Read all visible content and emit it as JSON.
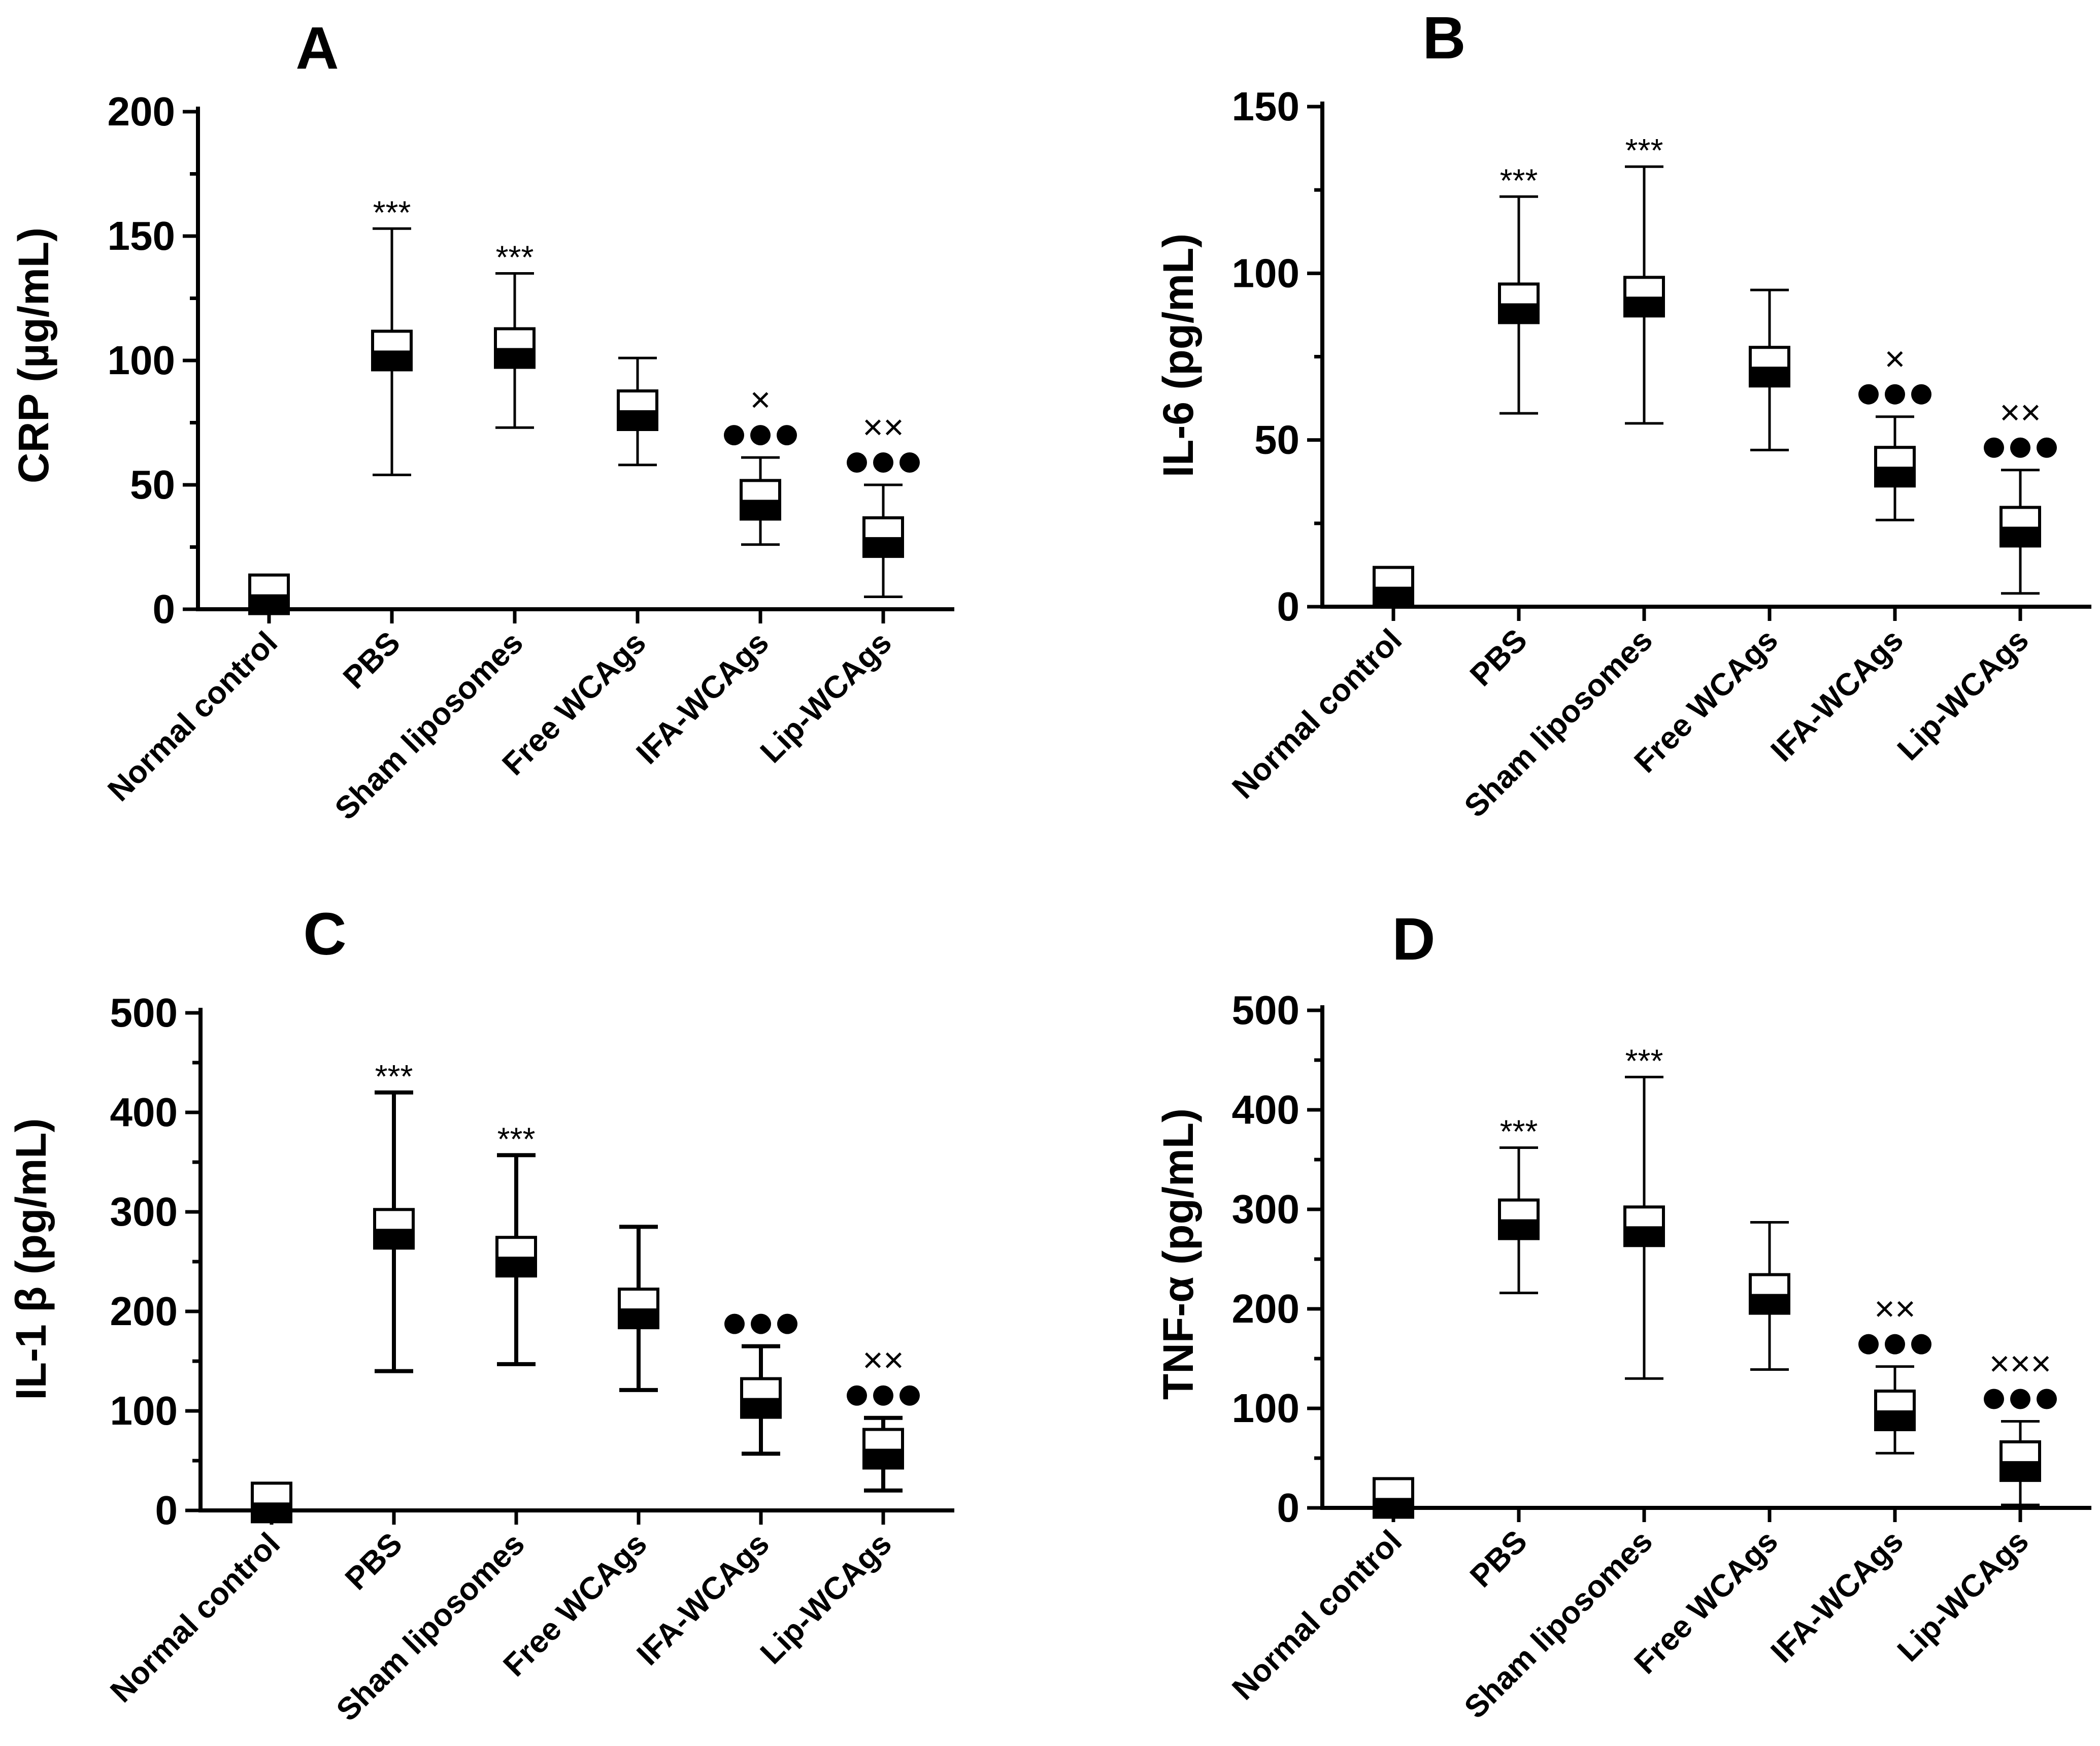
{
  "colors": {
    "ink": "#000000",
    "background": "#ffffff"
  },
  "icons": {
    "median_marker": "half-filled-square",
    "significance_dot": "filled-circle"
  },
  "chart_data": [
    {
      "type": "box",
      "panel": "A",
      "ylabel": "CRP (µg/mL)",
      "ylim": [
        0,
        200
      ],
      "yticks": [
        "0",
        "50",
        "100",
        "150",
        "200"
      ],
      "categories": [
        "Normal control",
        "PBS",
        "Sham liposomes",
        "Free WCAgs",
        "IFA-WCAgs",
        "Lip-WCAgs"
      ],
      "series": [
        {
          "name": "CRP",
          "mean": [
            6,
            104,
            105,
            80,
            44,
            29
          ],
          "min": [
            0,
            54,
            73,
            58,
            26,
            5
          ],
          "max": [
            10,
            153,
            135,
            101,
            61,
            50
          ],
          "stars": [
            "",
            "***",
            "***",
            "",
            "",
            ""
          ],
          "crosses": [
            "",
            "",
            "",
            "",
            "×",
            "××"
          ],
          "dots": [
            0,
            0,
            0,
            0,
            3,
            3
          ]
        }
      ]
    },
    {
      "type": "box",
      "panel": "B",
      "ylabel": "IL-6 (pg/mL)",
      "ylim": [
        0,
        150
      ],
      "yticks": [
        "0",
        "50",
        "100",
        "150"
      ],
      "categories": [
        "Normal control",
        "PBS",
        "Sham liposomes",
        "Free WCAgs",
        "IFA-WCAgs",
        "Lip-WCAgs"
      ],
      "series": [
        {
          "name": "IL-6",
          "mean": [
            6,
            91,
            93,
            72,
            42,
            24
          ],
          "min": [
            0,
            58,
            55,
            47,
            26,
            4
          ],
          "max": [
            9,
            123,
            132,
            95,
            57,
            41
          ],
          "stars": [
            "",
            "***",
            "***",
            "",
            "",
            ""
          ],
          "crosses": [
            "",
            "",
            "",
            "",
            "×",
            "××"
          ],
          "dots": [
            0,
            0,
            0,
            0,
            3,
            3
          ]
        }
      ]
    },
    {
      "type": "box",
      "panel": "C",
      "ylabel": "IL-1 β (pg/mL)",
      "ylim": [
        0,
        500
      ],
      "yticks": [
        "0",
        "100",
        "200",
        "300",
        "400",
        "500"
      ],
      "categories": [
        "Normal control",
        "PBS",
        "Sham liposomes",
        "Free WCAgs",
        "IFA-WCAgs",
        "Lip-WCAgs"
      ],
      "series": [
        {
          "name": "IL-1 β",
          "mean": [
            8,
            283,
            255,
            203,
            113,
            62
          ],
          "min": [
            0,
            140,
            147,
            121,
            57,
            20
          ],
          "max": [
            14,
            420,
            357,
            285,
            165,
            93
          ],
          "stars": [
            "",
            "***",
            "***",
            "",
            "",
            ""
          ],
          "crosses": [
            "",
            "",
            "",
            "",
            "",
            "××"
          ],
          "dots": [
            0,
            0,
            0,
            0,
            3,
            3
          ]
        }
      ]
    },
    {
      "type": "box",
      "panel": "D",
      "ylabel": "TNF-α (pg/mL)",
      "ylim": [
        0,
        500
      ],
      "yticks": [
        "0",
        "100",
        "200",
        "300",
        "400",
        "500"
      ],
      "categories": [
        "Normal control",
        "PBS",
        "Sham liposomes",
        "Free WCAgs",
        "IFA-WCAgs",
        "Lip-WCAgs"
      ],
      "series": [
        {
          "name": "TNF-α",
          "mean": [
            10,
            290,
            283,
            215,
            98,
            47
          ],
          "min": [
            0,
            216,
            130,
            139,
            55,
            3
          ],
          "max": [
            16,
            362,
            433,
            287,
            142,
            87
          ],
          "stars": [
            "",
            "***",
            "***",
            "",
            "",
            ""
          ],
          "crosses": [
            "",
            "",
            "",
            "",
            "××",
            "×××"
          ],
          "dots": [
            0,
            0,
            0,
            0,
            3,
            3
          ]
        }
      ]
    }
  ]
}
